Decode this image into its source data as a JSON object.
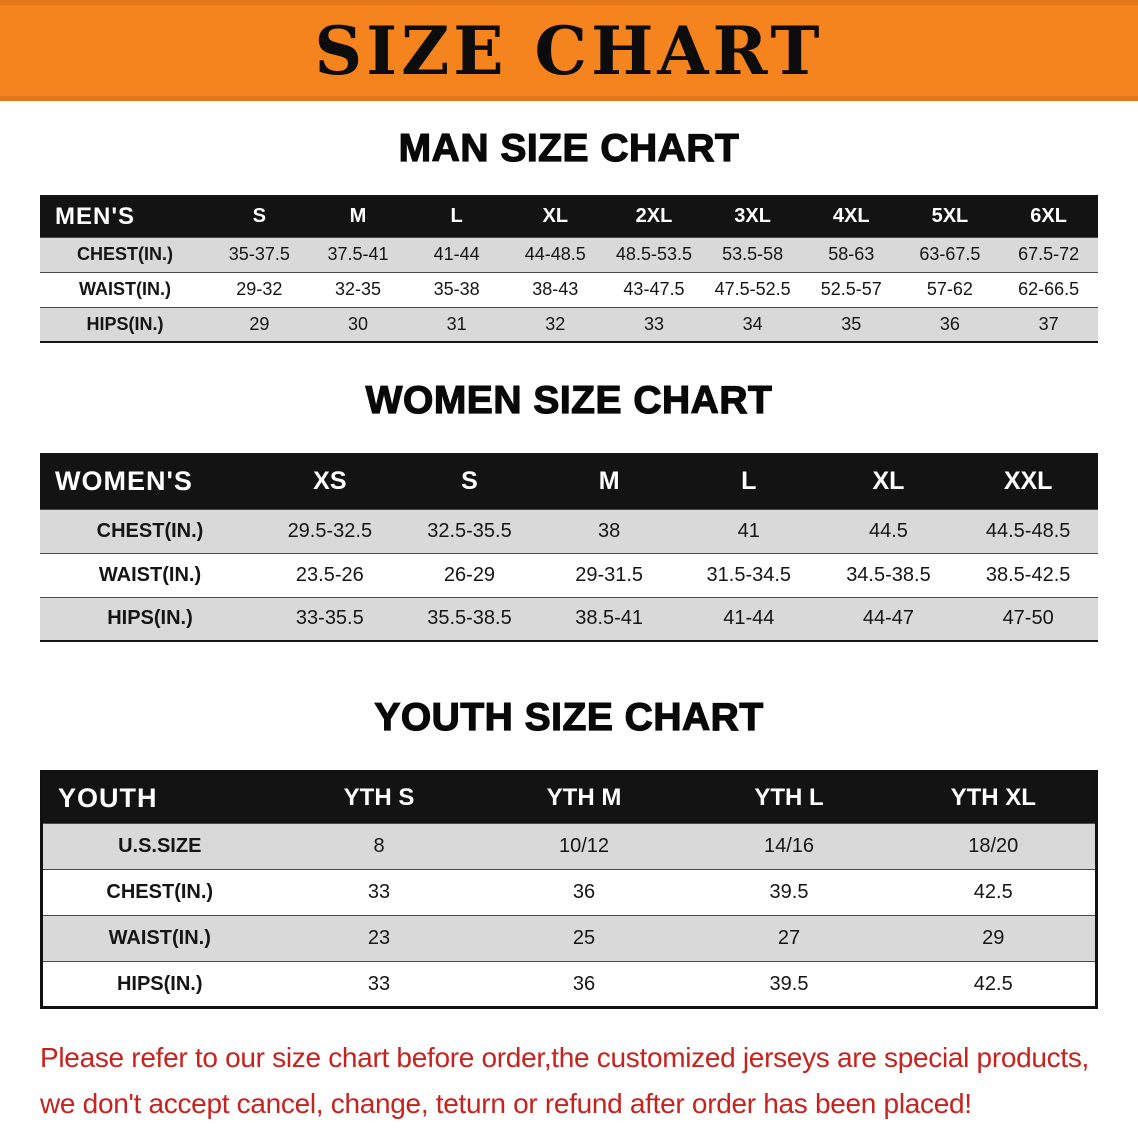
{
  "banner": {
    "title": "SIZE CHART",
    "bg_color": "#F5841E",
    "text_color": "#0c0c0c"
  },
  "sections": [
    {
      "id": "men",
      "heading": "MAN SIZE CHART",
      "header_label": "MEN'S",
      "columns": [
        "S",
        "M",
        "L",
        "XL",
        "2XL",
        "3XL",
        "4XL",
        "5XL",
        "6XL"
      ],
      "rows": [
        {
          "label": "CHEST(IN.)",
          "values": [
            "35-37.5",
            "37.5-41",
            "41-44",
            "44-48.5",
            "48.5-53.5",
            "53.5-58",
            "58-63",
            "63-67.5",
            "67.5-72"
          ]
        },
        {
          "label": "WAIST(IN.)",
          "values": [
            "29-32",
            "32-35",
            "35-38",
            "38-43",
            "43-47.5",
            "47.5-52.5",
            "52.5-57",
            "57-62",
            "62-66.5"
          ]
        },
        {
          "label": "HIPS(IN.)",
          "values": [
            "29",
            "30",
            "31",
            "32",
            "33",
            "34",
            "35",
            "36",
            "37"
          ]
        }
      ]
    },
    {
      "id": "women",
      "heading": "WOMEN SIZE CHART",
      "header_label": "WOMEN'S",
      "columns": [
        "XS",
        "S",
        "M",
        "L",
        "XL",
        "XXL"
      ],
      "rows": [
        {
          "label": "CHEST(IN.)",
          "values": [
            "29.5-32.5",
            "32.5-35.5",
            "38",
            "41",
            "44.5",
            "44.5-48.5"
          ]
        },
        {
          "label": "WAIST(IN.)",
          "values": [
            "23.5-26",
            "26-29",
            "29-31.5",
            "31.5-34.5",
            "34.5-38.5",
            "38.5-42.5"
          ]
        },
        {
          "label": "HIPS(IN.)",
          "values": [
            "33-35.5",
            "35.5-38.5",
            "38.5-41",
            "41-44",
            "44-47",
            "47-50"
          ]
        }
      ]
    },
    {
      "id": "youth",
      "heading": "YOUTH SIZE CHART",
      "header_label": "YOUTH",
      "columns": [
        "YTH S",
        "YTH M",
        "YTH L",
        "YTH XL"
      ],
      "rows": [
        {
          "label": "U.S.SIZE",
          "values": [
            "8",
            "10/12",
            "14/16",
            "18/20"
          ]
        },
        {
          "label": "CHEST(IN.)",
          "values": [
            "33",
            "36",
            "39.5",
            "42.5"
          ]
        },
        {
          "label": "WAIST(IN.)",
          "values": [
            "23",
            "25",
            "27",
            "29"
          ]
        },
        {
          "label": "HIPS(IN.)",
          "values": [
            "33",
            "36",
            "39.5",
            "42.5"
          ]
        }
      ]
    }
  ],
  "disclaimer": {
    "line1": "Please refer to our size chart before order,the customized jerseys are special products,",
    "line2": "we don't accept cancel, change, teturn or refund after order has been placed!",
    "text_color": "#c8221e"
  }
}
